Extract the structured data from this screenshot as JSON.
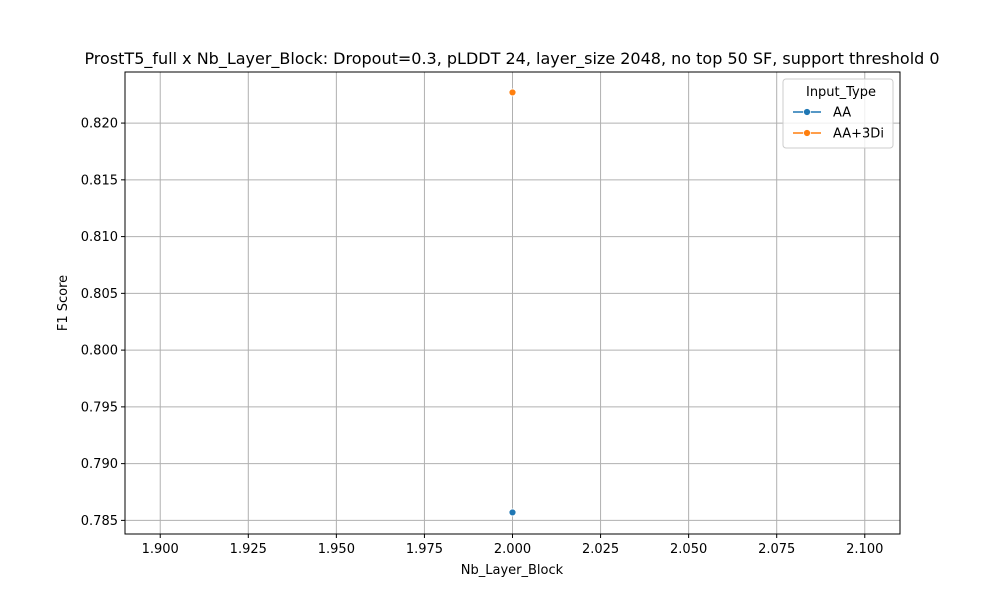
{
  "chart_data": {
    "type": "line",
    "title": "ProstT5_full x Nb_Layer_Block: Dropout=0.3, pLDDT 24, layer_size 2048, no top 50 SF, support threshold 0",
    "xlabel": "Nb_Layer_Block",
    "ylabel": "F1 Score",
    "xlim": [
      1.89,
      2.11
    ],
    "ylim": [
      0.7838,
      0.8245
    ],
    "x_ticks": [
      "1.900",
      "1.925",
      "1.950",
      "1.975",
      "2.000",
      "2.025",
      "2.050",
      "2.075",
      "2.100"
    ],
    "y_ticks": [
      "0.785",
      "0.790",
      "0.795",
      "0.800",
      "0.805",
      "0.810",
      "0.815",
      "0.820"
    ],
    "grid": true,
    "legend": {
      "title": "Input_Type",
      "position": "top-right"
    },
    "series": [
      {
        "name": "AA",
        "color": "#1f77b4",
        "points": [
          {
            "x": 2.0,
            "y": 0.7857
          }
        ]
      },
      {
        "name": "AA+3Di",
        "color": "#ff7f0e",
        "points": [
          {
            "x": 2.0,
            "y": 0.8227
          }
        ]
      }
    ]
  }
}
